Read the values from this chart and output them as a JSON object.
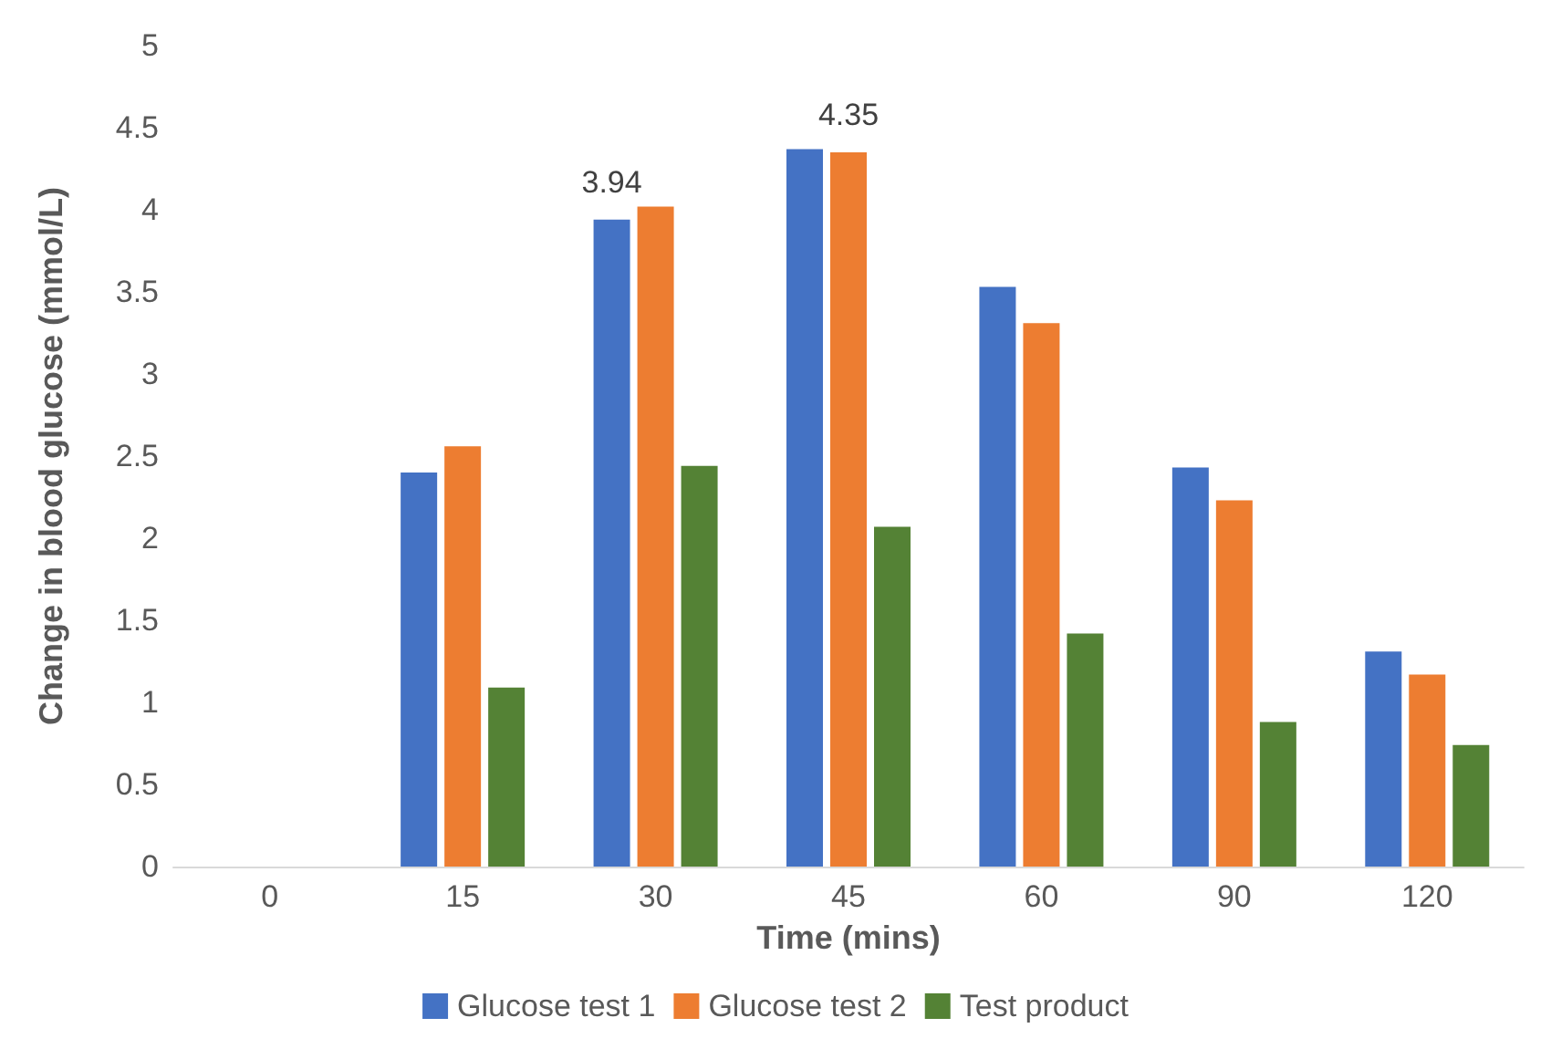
{
  "chart_data": {
    "type": "bar",
    "xlabel": "Time (mins)",
    "ylabel": "Change in blood glucose (mmol/L)",
    "categories": [
      "0",
      "15",
      "30",
      "45",
      "60",
      "90",
      "120"
    ],
    "series": [
      {
        "name": "Glucose test 1",
        "color": "#4472c4",
        "values": [
          0,
          2.4,
          3.94,
          4.37,
          3.53,
          2.43,
          1.31
        ],
        "value_labels": [
          null,
          null,
          "3.94",
          null,
          null,
          null,
          null
        ]
      },
      {
        "name": "Glucose test 2",
        "color": "#ed7d31",
        "values": [
          0,
          2.56,
          4.02,
          4.35,
          3.31,
          2.23,
          1.17
        ],
        "value_labels": [
          null,
          null,
          null,
          "4.35",
          null,
          null,
          null
        ]
      },
      {
        "name": "Test product",
        "color": "#548235",
        "values": [
          0,
          1.09,
          2.44,
          2.07,
          1.42,
          0.88,
          0.74
        ]
      }
    ],
    "ylim": [
      0,
      5
    ],
    "yticks": [
      0,
      0.5,
      1,
      1.5,
      2,
      2.5,
      3,
      3.5,
      4,
      4.5,
      5
    ],
    "grid": false,
    "legend": "bottom"
  }
}
